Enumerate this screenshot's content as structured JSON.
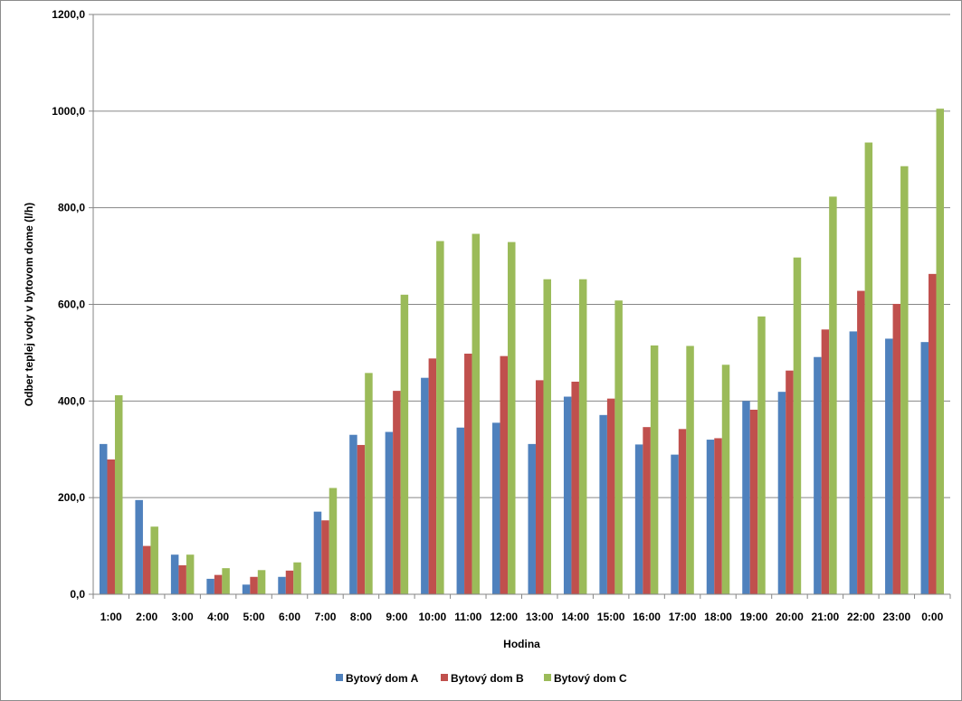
{
  "chart_data": {
    "type": "bar",
    "xlabel": "Hodina",
    "ylabel": "Odber teplej vody v bytovom dome (l/h)",
    "ylim": [
      0,
      1200
    ],
    "yticks": [
      "0,0",
      "200,0",
      "400,0",
      "600,0",
      "800,0",
      "1000,0",
      "1200,0"
    ],
    "grid": true,
    "legend_position": "bottom",
    "categories": [
      "1:00",
      "2:00",
      "3:00",
      "4:00",
      "5:00",
      "6:00",
      "7:00",
      "8:00",
      "9:00",
      "10:00",
      "11:00",
      "12:00",
      "13:00",
      "14:00",
      "15:00",
      "16:00",
      "17:00",
      "18:00",
      "19:00",
      "20:00",
      "21:00",
      "22:00",
      "23:00",
      "0:00"
    ],
    "series": [
      {
        "name": "Bytový dom A",
        "color": "#4f81bd",
        "values": [
          311,
          195,
          82,
          32,
          20,
          36,
          171,
          330,
          336,
          448,
          345,
          355,
          311,
          409,
          371,
          310,
          289,
          320,
          400,
          419,
          491,
          544,
          529,
          522
        ]
      },
      {
        "name": "Bytový dom B",
        "color": "#c0504d",
        "values": [
          279,
          100,
          60,
          40,
          36,
          49,
          153,
          309,
          421,
          488,
          498,
          493,
          443,
          440,
          405,
          346,
          342,
          323,
          382,
          463,
          548,
          628,
          601,
          663
        ]
      },
      {
        "name": "Bytový dom C",
        "color": "#9bbb59",
        "values": [
          412,
          140,
          82,
          54,
          50,
          66,
          220,
          458,
          620,
          731,
          746,
          729,
          652,
          652,
          608,
          515,
          514,
          475,
          575,
          697,
          823,
          935,
          886,
          1005
        ]
      }
    ]
  }
}
